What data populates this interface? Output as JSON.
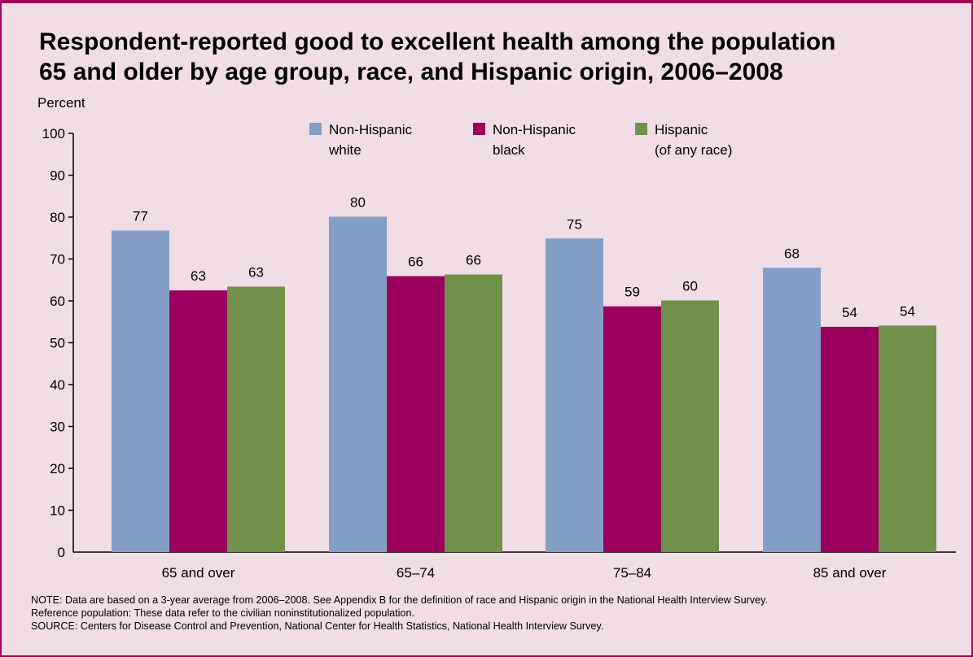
{
  "title_lines": [
    "Respondent-reported good to excellent health among the population",
    "65 and older by age group, race, and Hispanic origin, 2006–2008"
  ],
  "notes": [
    "NOTE: Data are based on a 3-year average from 2006–2008. See Appendix B for the definition of race and Hispanic origin in the National Health Interview Survey.",
    "Reference population: These data refer to the civilian noninstitutionalized population.",
    "SOURCE: Centers for Disease Control and Prevention, National Center for Health Statistics, National Health Interview Survey."
  ],
  "colors": {
    "background": "#f0dde6",
    "border": "#a4005a"
  },
  "chart_data": {
    "type": "bar",
    "title": "Respondent-reported good to excellent health among the population 65 and older by age group, race, and Hispanic origin, 2006–2008",
    "ylabel": "Percent",
    "xlabel": "",
    "ylim": [
      0,
      100
    ],
    "yticks": [
      0,
      10,
      20,
      30,
      40,
      50,
      60,
      70,
      80,
      90,
      100
    ],
    "grid": false,
    "legend_position": "top",
    "categories": [
      "65 and over",
      "65–74",
      "75–84",
      "85 and over"
    ],
    "series": [
      {
        "name": "Non-Hispanic white",
        "legend_lines": [
          "Non-Hispanic",
          "white"
        ],
        "color": "#849fc5",
        "values": [
          77,
          80,
          75,
          68
        ],
        "plot_values": [
          76.8,
          80.1,
          74.9,
          67.9
        ]
      },
      {
        "name": "Non-Hispanic black",
        "legend_lines": [
          "Non-Hispanic",
          "black"
        ],
        "color": "#9b005c",
        "values": [
          63,
          66,
          59,
          54
        ],
        "plot_values": [
          62.5,
          65.9,
          58.7,
          53.8
        ]
      },
      {
        "name": "Hispanic (of any race)",
        "legend_lines": [
          "Hispanic",
          "(of any race)"
        ],
        "color": "#70914a",
        "values": [
          63,
          66,
          60,
          54
        ],
        "plot_values": [
          63.4,
          66.3,
          60.1,
          54.1
        ]
      }
    ]
  }
}
